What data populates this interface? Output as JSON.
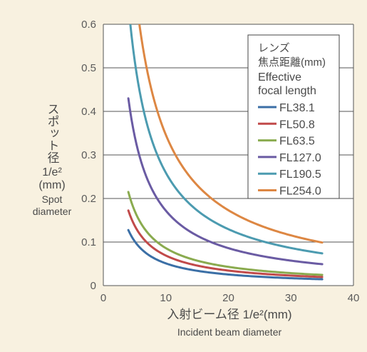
{
  "chart_data": {
    "type": "line",
    "xlabel_ja": "入射ビーム径 1/e²(mm)",
    "xlabel_en": "Incident beam diameter",
    "ylabel_ja_1": "スポット径",
    "ylabel_ja_2": "1/e²",
    "ylabel_ja_3": "(mm)",
    "ylabel_en_1": "Spot",
    "ylabel_en_2": "diameter",
    "xlim": [
      0,
      40
    ],
    "ylim": [
      0,
      0.6
    ],
    "x_ticks": [
      "0",
      "10",
      "20",
      "30",
      "40"
    ],
    "y_ticks": [
      "0",
      "0.1",
      "0.2",
      "0.3",
      "0.4",
      "0.5",
      "0.6"
    ],
    "grid": "horizontal",
    "legend": {
      "placement": "top-right",
      "title_1": "レンズ",
      "title_2": "焦点距離(mm)",
      "title_3": "Effective",
      "title_4": "focal length"
    },
    "x_range": [
      4,
      35
    ],
    "series": [
      {
        "name": "FL38.1",
        "color": "#3b6fa6",
        "k": 0.51
      },
      {
        "name": "FL50.8",
        "color": "#c14a4a",
        "k": 0.69
      },
      {
        "name": "FL63.5",
        "color": "#8aab4f",
        "k": 0.86
      },
      {
        "name": "FL127.0",
        "color": "#6a5ba3",
        "k": 1.72
      },
      {
        "name": "FL190.5",
        "color": "#4c9bb0",
        "k": 2.59
      },
      {
        "name": "FL254.0",
        "color": "#dd8743",
        "k": 3.46
      }
    ]
  }
}
